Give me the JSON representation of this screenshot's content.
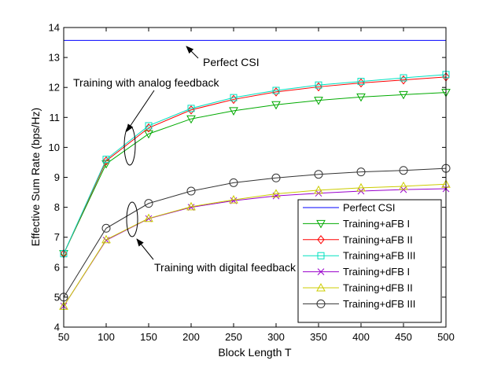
{
  "chart_data": {
    "type": "line",
    "title": "",
    "xlabel": "Block Length T",
    "ylabel": "Effective Sum Rate (bps/Hz)",
    "xlim": [
      50,
      500
    ],
    "ylim": [
      4,
      14
    ],
    "grid": false,
    "legend_position": "bottom-right",
    "x": [
      50,
      100,
      150,
      200,
      250,
      300,
      350,
      400,
      450,
      500
    ],
    "x_ticks": [
      "50",
      "100",
      "150",
      "200",
      "250",
      "300",
      "350",
      "400",
      "450",
      "500"
    ],
    "y_ticks": [
      "4",
      "5",
      "6",
      "7",
      "8",
      "9",
      "10",
      "11",
      "12",
      "13",
      "14"
    ],
    "series": [
      {
        "name": "Perfect CSI",
        "color": "#0000ff",
        "marker": "none",
        "values": [
          13.57,
          13.57,
          13.57,
          13.57,
          13.57,
          13.57,
          13.57,
          13.57,
          13.57,
          13.57
        ]
      },
      {
        "name": "Training+aFB I",
        "color": "#00aa00",
        "marker": "triangle-down",
        "values": [
          6.45,
          9.45,
          10.45,
          10.95,
          11.22,
          11.42,
          11.57,
          11.68,
          11.76,
          11.83
        ]
      },
      {
        "name": "Training+aFB II",
        "color": "#ff0000",
        "marker": "diamond",
        "values": [
          6.45,
          9.55,
          10.65,
          11.25,
          11.6,
          11.85,
          12.02,
          12.15,
          12.25,
          12.35
        ]
      },
      {
        "name": "Training+aFB III",
        "color": "#00e0c0",
        "marker": "square",
        "values": [
          6.45,
          9.6,
          10.72,
          11.3,
          11.66,
          11.9,
          12.08,
          12.2,
          12.32,
          12.43
        ]
      },
      {
        "name": "Training+dFB I",
        "color": "#9900cc",
        "marker": "x",
        "values": [
          4.7,
          6.9,
          7.62,
          8.0,
          8.22,
          8.38,
          8.47,
          8.54,
          8.59,
          8.62
        ]
      },
      {
        "name": "Training+dFB II",
        "color": "#cccc00",
        "marker": "triangle-up",
        "values": [
          4.7,
          6.92,
          7.63,
          8.02,
          8.25,
          8.45,
          8.57,
          8.65,
          8.7,
          8.77
        ]
      },
      {
        "name": "Training+dFB III",
        "color": "#333333",
        "marker": "circle",
        "values": [
          5.0,
          7.3,
          8.13,
          8.54,
          8.82,
          8.98,
          9.1,
          9.18,
          9.23,
          9.3
        ]
      }
    ],
    "annotations": [
      {
        "text": "Perfect CSI",
        "target_x": 130,
        "target_y": 13.57
      },
      {
        "text": "Training with analog feedback",
        "target_x": 127,
        "target_y": 10.0
      },
      {
        "text": "Training with digital feedback",
        "target_x": 127,
        "target_y": 7.2
      }
    ]
  }
}
